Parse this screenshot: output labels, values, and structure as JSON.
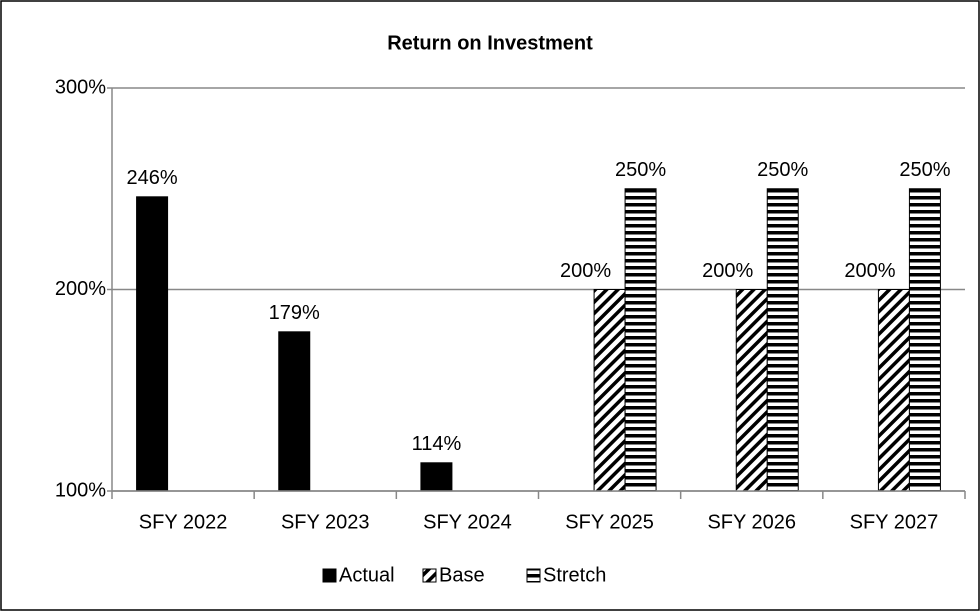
{
  "chart_data": {
    "type": "bar",
    "title": "Return on Investment",
    "categories": [
      "SFY 2022",
      "SFY 2023",
      "SFY 2024",
      "SFY 2025",
      "SFY 2026",
      "SFY 2027"
    ],
    "series": [
      {
        "name": "Actual",
        "color": "#000000",
        "pattern": "solid",
        "values": [
          246,
          179,
          114,
          null,
          null,
          null
        ],
        "value_labels": [
          "246%",
          "179%",
          "114%",
          null,
          null,
          null
        ]
      },
      {
        "name": "Base",
        "color": "#000000",
        "pattern": "diagonal",
        "values": [
          null,
          null,
          null,
          200,
          200,
          200
        ],
        "value_labels": [
          null,
          null,
          null,
          "200%",
          "200%",
          "200%"
        ]
      },
      {
        "name": "Stretch",
        "color": "#000000",
        "pattern": "horizontal",
        "values": [
          null,
          null,
          null,
          250,
          250,
          250
        ],
        "value_labels": [
          null,
          null,
          null,
          "250%",
          "250%",
          "250%"
        ]
      }
    ],
    "ylim": [
      100,
      300
    ],
    "yticks": [
      {
        "value": 100,
        "label": "100%"
      },
      {
        "value": 200,
        "label": "200%"
      },
      {
        "value": 300,
        "label": "300%"
      }
    ],
    "grid": true,
    "legend": "bottom"
  }
}
